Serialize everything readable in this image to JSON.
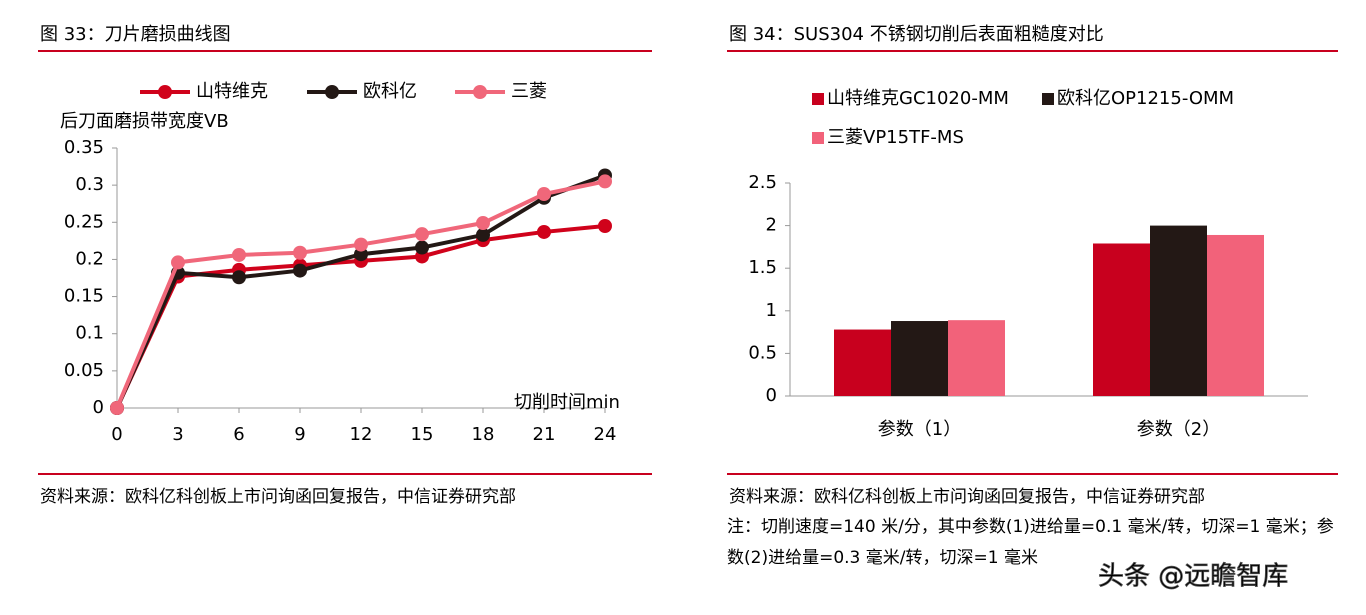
{
  "chart_data": [
    {
      "type": "line",
      "title": "图 33：刀片磨损曲线图",
      "y_label": "后刀面磨损带宽度VB",
      "x_label": "切削时间min",
      "x": [
        0,
        3,
        6,
        9,
        12,
        15,
        18,
        21,
        24
      ],
      "series": [
        {
          "name": "山特维克",
          "color": "#d0021b",
          "values": [
            0,
            0.177,
            0.186,
            0.192,
            0.198,
            0.204,
            0.226,
            0.237,
            0.245
          ]
        },
        {
          "name": "欧科亿",
          "color": "#231815",
          "values": [
            0,
            0.182,
            0.176,
            0.185,
            0.207,
            0.216,
            0.233,
            0.283,
            0.313
          ]
        },
        {
          "name": "三菱",
          "color": "#f0677a",
          "values": [
            0,
            0.196,
            0.206,
            0.209,
            0.22,
            0.234,
            0.249,
            0.288,
            0.305
          ]
        }
      ],
      "xlim": [
        0,
        24
      ],
      "xticks": [
        0,
        3,
        6,
        9,
        12,
        15,
        18,
        21,
        24
      ],
      "ylim": [
        0,
        0.35
      ],
      "yticks": [
        0,
        0.05,
        0.1,
        0.15,
        0.2,
        0.25,
        0.3,
        0.35
      ],
      "grid": false,
      "legend": "top",
      "source": "资料来源：欧科亿科创板上市问询函回复报告，中信证券研究部"
    },
    {
      "type": "bar",
      "title": "图 34：SUS304 不锈钢切削后表面粗糙度对比",
      "categories": [
        "参数（1）",
        "参数（2）"
      ],
      "series": [
        {
          "name": "山特维克GC1020-MM",
          "color": "#c8001e",
          "values": [
            0.78,
            1.79
          ]
        },
        {
          "name": "欧科亿OP1215-OMM",
          "color": "#231815",
          "values": [
            0.88,
            2.0
          ]
        },
        {
          "name": "三菱VP15TF-MS",
          "color": "#f2627a",
          "values": [
            0.89,
            1.89
          ]
        }
      ],
      "ylim": [
        0,
        2.5
      ],
      "yticks": [
        0,
        0.5,
        1,
        1.5,
        2,
        2.5
      ],
      "grid": false,
      "legend": "top",
      "source": "资料来源：欧科亿科创板上市问询函回复报告，中信证券研究部",
      "note": "注：切削速度=140 米/分，其中参数(1)进给量=0.1 毫米/转，切深=1 毫米；参数(2)进给量=0.3 毫米/转，切深=1 毫米"
    }
  ],
  "watermark": "头条 @远瞻智库"
}
